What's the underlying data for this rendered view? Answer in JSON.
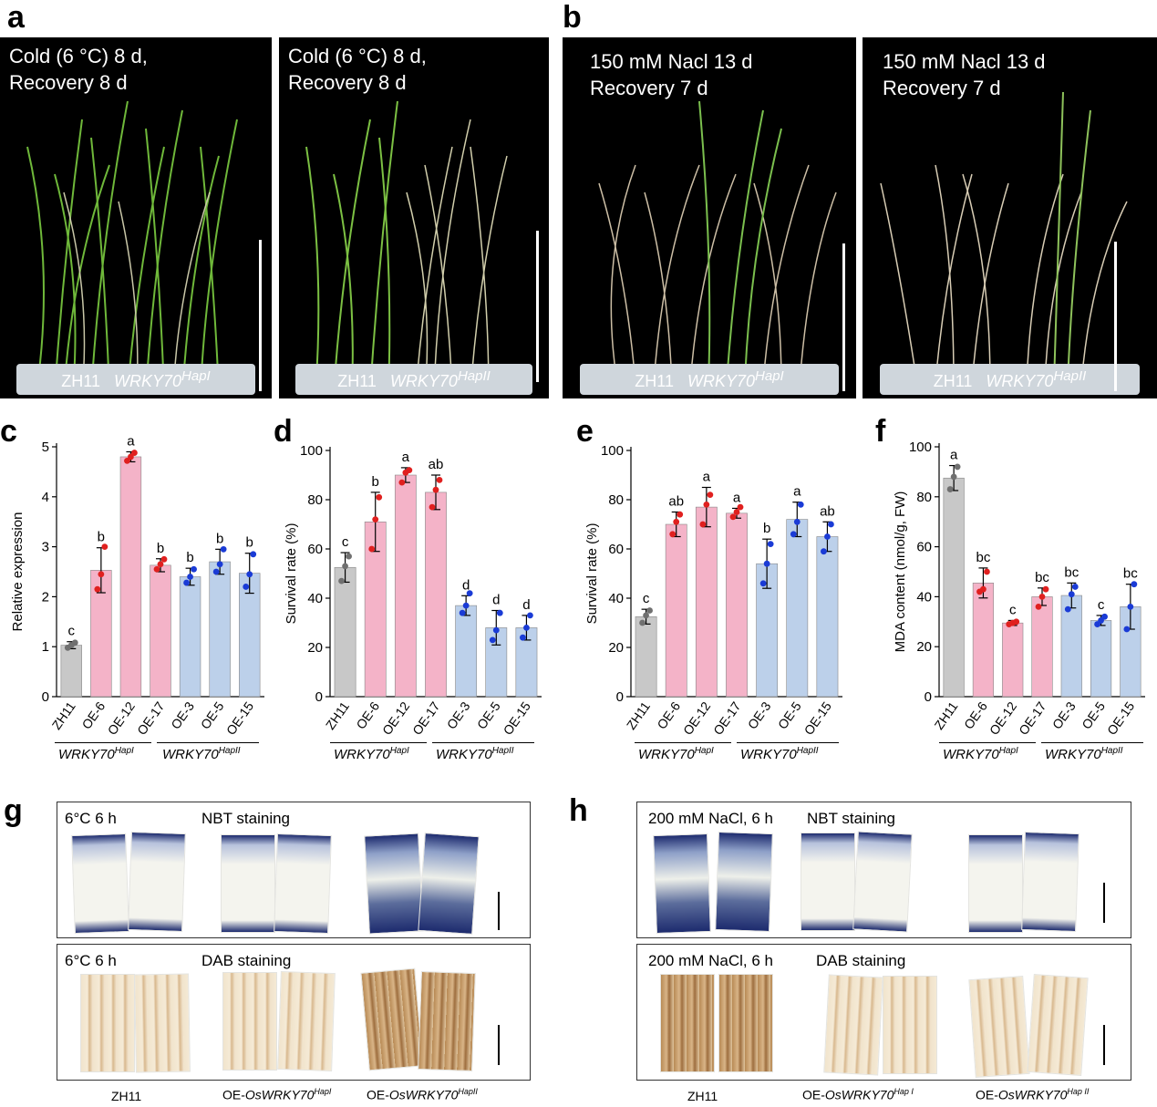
{
  "panels": {
    "a": {
      "letter": "a",
      "photos": [
        {
          "caption_l1": "Cold (6 °C) 8 d,",
          "caption_l2": "Recovery 8 d",
          "tray_wt": "ZH11",
          "tray_gene": "WRKY70",
          "tray_sup": "HapI"
        },
        {
          "caption_l1": "Cold (6 °C) 8 d,",
          "caption_l2": "Recovery 8 d",
          "tray_wt": "ZH11",
          "tray_gene": "WRKY70",
          "tray_sup": "HapII"
        }
      ]
    },
    "b": {
      "letter": "b",
      "photos": [
        {
          "caption_l1": "150 mM Nacl 13 d",
          "caption_l2": "Recovery 7 d",
          "tray_wt": "ZH11",
          "tray_gene": "WRKY70",
          "tray_sup": "HapI"
        },
        {
          "caption_l1": "150 mM Nacl 13 d",
          "caption_l2": "Recovery 7 d",
          "tray_wt": "ZH11",
          "tray_gene": "WRKY70",
          "tray_sup": "HapII"
        }
      ]
    },
    "g": {
      "letter": "g",
      "top": {
        "cond": "6°C   6 h",
        "stain": "NBT staining"
      },
      "bottom": {
        "cond": "6°C   6 h",
        "stain": "DAB staining"
      },
      "labels": {
        "wt": "ZH11",
        "oe1_prefix": "OE-",
        "oe1_gene": "OsWRKY70",
        "oe1_sup": "HapI",
        "oe2_prefix": "OE-",
        "oe2_gene": "OsWRKY70",
        "oe2_sup": "HapII"
      }
    },
    "h": {
      "letter": "h",
      "top": {
        "cond": "200 mM NaCl, 6 h",
        "stain": "NBT staining"
      },
      "bottom": {
        "cond": "200 mM NaCl,  6 h",
        "stain": "DAB staining"
      },
      "labels": {
        "wt": "ZH11",
        "oe1_prefix": "OE-",
        "oe1_gene": "OsWRKY70",
        "oe1_sup": "Hap I",
        "oe2_prefix": "OE-",
        "oe2_gene": "OsWRKY70",
        "oe2_sup": "Hap II"
      }
    }
  },
  "colors": {
    "gray": "#c8c8c8",
    "pink": "#f4b3c8",
    "blue": "#bcd0ea",
    "red_dot": "#e0201f",
    "blue_dot": "#1a3bd6",
    "gray_dot": "#707070",
    "nbt": "#1d2b6e",
    "dab": "#a0703a"
  },
  "group_labels": {
    "hapI_gene": "WRKY70",
    "hapI_sup": "HapI",
    "hapII_gene": "WRKY70",
    "hapII_sup": "HapII"
  },
  "chart_data": [
    {
      "panel": "c",
      "type": "bar",
      "categories": [
        "ZH11",
        "OE-6",
        "OE-12",
        "OE-17",
        "OE-3",
        "OE-5",
        "OE-15"
      ],
      "values": [
        1.03,
        2.53,
        4.8,
        2.63,
        2.4,
        2.7,
        2.47
      ],
      "errors": [
        0.07,
        0.45,
        0.1,
        0.13,
        0.17,
        0.25,
        0.4
      ],
      "points": [
        [
          0.98,
          1.03,
          1.08
        ],
        [
          2.15,
          2.45,
          3.0
        ],
        [
          4.72,
          4.8,
          4.88
        ],
        [
          2.55,
          2.65,
          2.75
        ],
        [
          2.28,
          2.4,
          2.55
        ],
        [
          2.5,
          2.65,
          2.95
        ],
        [
          2.2,
          2.45,
          2.85
        ]
      ],
      "letters": [
        "c",
        "b",
        "a",
        "b",
        "b",
        "b",
        "b"
      ],
      "ylabel": "Relative  expression",
      "ylim": [
        0,
        5
      ],
      "yticks": [
        0,
        1,
        2,
        3,
        4,
        5
      ]
    },
    {
      "panel": "d",
      "type": "bar",
      "categories": [
        "ZH11",
        "OE-6",
        "OE-12",
        "OE-17",
        "OE-3",
        "OE-5",
        "OE-15"
      ],
      "values": [
        52.5,
        71,
        90,
        83,
        37,
        28,
        28
      ],
      "errors": [
        6,
        12,
        3,
        7,
        4,
        7,
        5
      ],
      "points": [
        [
          47,
          53,
          57
        ],
        [
          60,
          72,
          81
        ],
        [
          87,
          91,
          92
        ],
        [
          77,
          84,
          88
        ],
        [
          34,
          37,
          42
        ],
        [
          23,
          27,
          34
        ],
        [
          24,
          28,
          33
        ]
      ],
      "letters": [
        "c",
        "b",
        "a",
        "ab",
        "d",
        "d",
        "d"
      ],
      "ylabel": "Survival rate (%)",
      "ylim": [
        0,
        100
      ],
      "yticks": [
        0,
        20,
        40,
        60,
        80,
        100
      ]
    },
    {
      "panel": "e",
      "type": "bar",
      "categories": [
        "ZH11",
        "OE-6",
        "OE-12",
        "OE-17",
        "OE-3",
        "OE-5",
        "OE-15"
      ],
      "values": [
        32.5,
        70,
        77,
        74.5,
        54,
        72,
        65
      ],
      "errors": [
        3,
        5,
        8,
        2,
        10,
        7,
        6
      ],
      "points": [
        [
          30,
          33,
          35
        ],
        [
          66,
          71,
          74
        ],
        [
          70,
          78,
          82
        ],
        [
          73,
          75,
          77
        ],
        [
          46,
          54,
          62
        ],
        [
          66,
          71,
          78
        ],
        [
          59,
          65,
          70
        ]
      ],
      "letters": [
        "c",
        "ab",
        "a",
        "a",
        "b",
        "a",
        "ab"
      ],
      "ylabel": "Survival rate (%)",
      "ylim": [
        0,
        100
      ],
      "yticks": [
        0,
        20,
        40,
        60,
        80,
        100
      ]
    },
    {
      "panel": "f",
      "type": "bar",
      "categories": [
        "ZH11",
        "OE-6",
        "OE-12",
        "OE-17",
        "OE-3",
        "OE-5",
        "OE-15"
      ],
      "values": [
        87.5,
        45.5,
        29.5,
        40,
        40.5,
        30.5,
        36
      ],
      "errors": [
        5,
        6,
        1,
        3.5,
        5,
        2,
        9
      ],
      "points": [
        [
          83,
          88,
          92
        ],
        [
          42,
          43,
          50
        ],
        [
          29,
          29.5,
          30
        ],
        [
          36,
          40,
          43
        ],
        [
          35,
          41,
          44
        ],
        [
          29,
          30.5,
          32
        ],
        [
          27,
          36,
          45
        ]
      ],
      "letters": [
        "a",
        "bc",
        "c",
        "bc",
        "bc",
        "c",
        "bc"
      ],
      "ylabel": "MDA content (nmol/g, FW)",
      "ylim": [
        0,
        100
      ],
      "yticks": [
        0,
        20,
        40,
        60,
        80,
        100
      ]
    }
  ]
}
